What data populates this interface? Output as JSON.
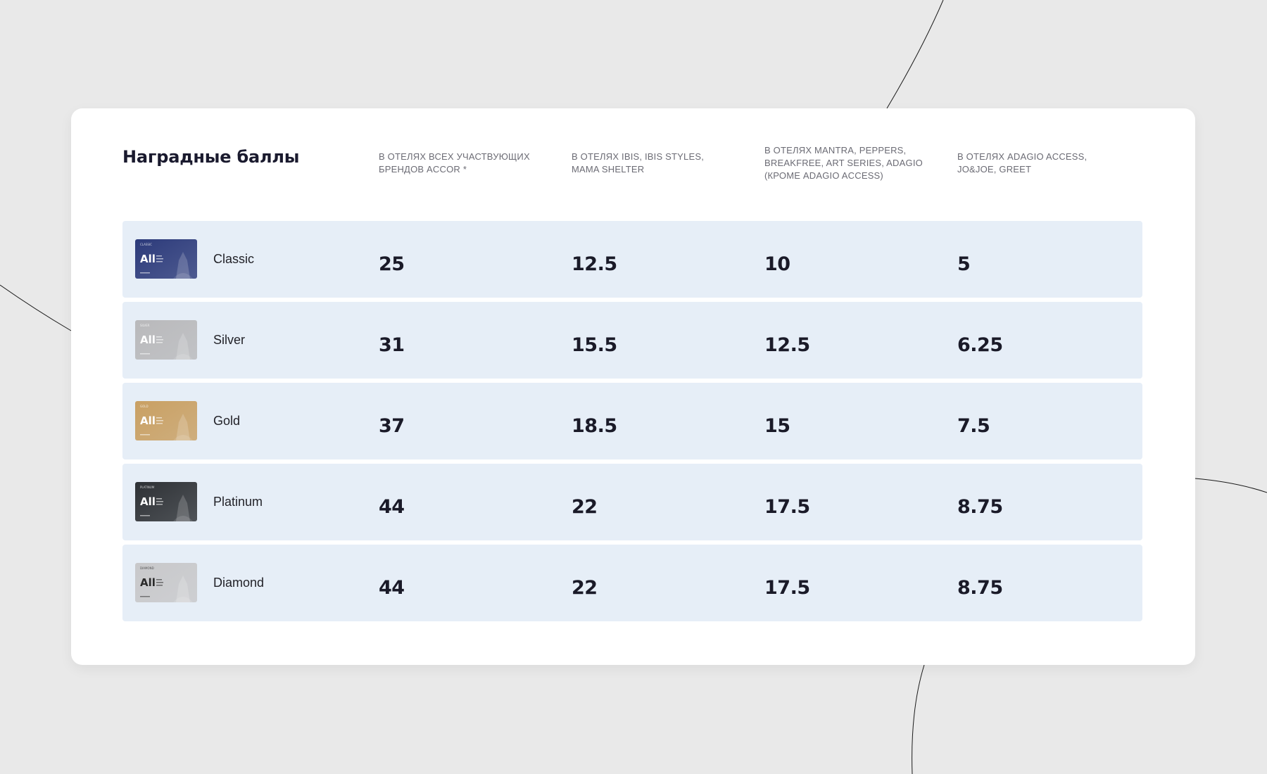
{
  "title": "Наградные баллы",
  "columns": [
    "В отелях всех участвующих брендов Accor *",
    "В отелях ibis, ibis Styles, Mama Shelter",
    "В отелях Mantra, Peppers, Breakfree, Art Series, Adagio (кроме Adagio Access)",
    "В отелях Adagio Access, JO&JOE, Greet"
  ],
  "card_logo_text": "All",
  "rows": [
    {
      "tier": "Classic",
      "card_label": "CLASSIC",
      "card_color": "#2c3a7a",
      "values": [
        "25",
        "12.5",
        "10",
        "5"
      ]
    },
    {
      "tier": "Silver",
      "card_label": "SILVER",
      "card_color": "#b9b9bb",
      "values": [
        "31",
        "15.5",
        "12.5",
        "6.25"
      ]
    },
    {
      "tier": "Gold",
      "card_label": "GOLD",
      "card_color": "#c9a063",
      "values": [
        "37",
        "18.5",
        "15",
        "7.5"
      ]
    },
    {
      "tier": "Platinum",
      "card_label": "PLATINUM",
      "card_color": "#2e3135",
      "values": [
        "44",
        "22",
        "17.5",
        "8.75"
      ]
    },
    {
      "tier": "Diamond",
      "card_label": "DIAMOND",
      "card_color": "#c8c8ca",
      "values": [
        "44",
        "22",
        "17.5",
        "8.75"
      ]
    }
  ]
}
